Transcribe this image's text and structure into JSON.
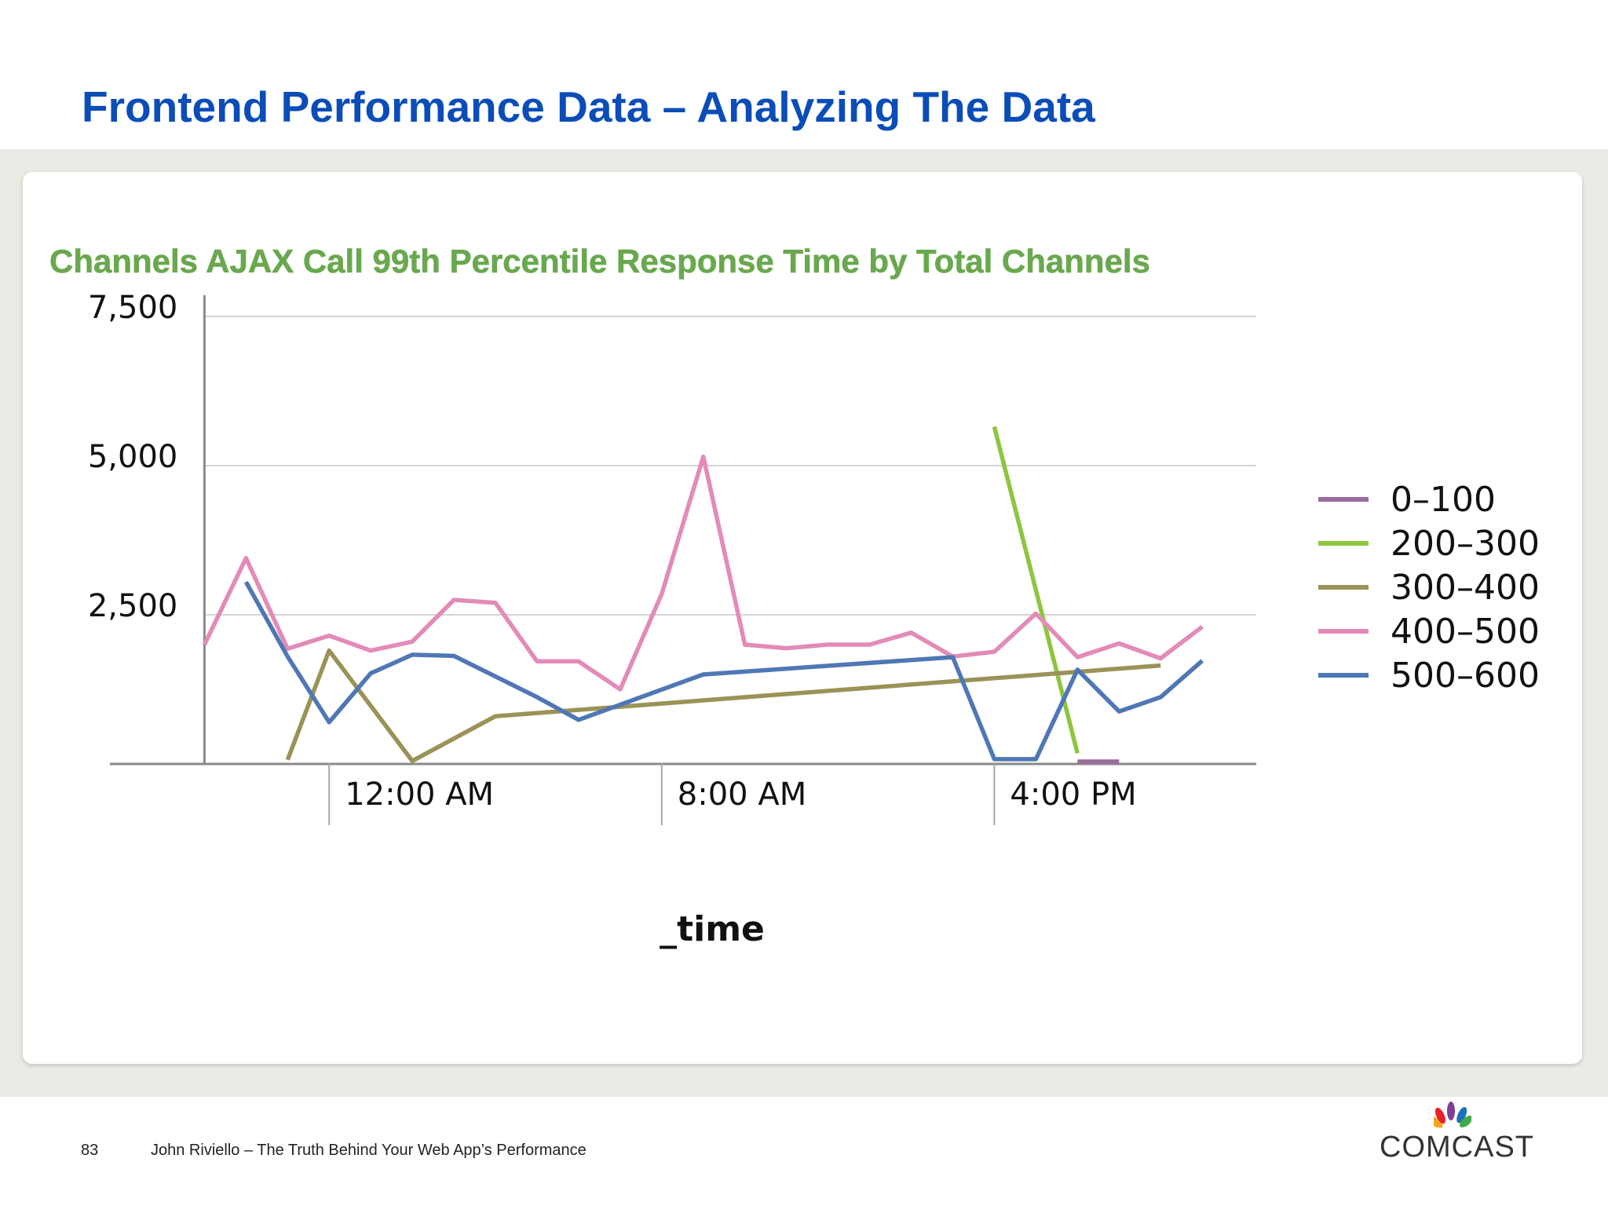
{
  "slide": {
    "title": "Frontend Performance Data – Analyzing The Data",
    "page_number": "83",
    "footer_text": "John Riviello – The Truth Behind Your Web App’s Performance",
    "logo_text": "COMCAST"
  },
  "colors": {
    "title": "#0b4db8",
    "chart_title": "#6aa84f"
  },
  "chart_data": {
    "type": "line",
    "title": "Channels AJAX Call 99th Percentile Response Time by Total Channels",
    "xlabel": "_time",
    "ylabel": "",
    "xlim": [
      -3.8,
      22.3
    ],
    "ylim": [
      0,
      7500
    ],
    "yticks": [
      2500,
      5000,
      7500
    ],
    "ytick_labels": [
      "2,500",
      "5,000",
      "7,500"
    ],
    "xticks": [
      0,
      8,
      16
    ],
    "xtick_labels": [
      "12:00 AM",
      "8:00 AM",
      "4:00 PM"
    ],
    "x_unit": "hours relative to 12:00 AM",
    "grid": true,
    "legend_position": "right",
    "series": [
      {
        "name": "0-100",
        "color": "#9a6b9e",
        "points": [
          [
            18.0,
            40
          ],
          [
            19.0,
            40
          ]
        ]
      },
      {
        "name": "200-300",
        "color": "#8cc63f",
        "points": [
          [
            16.0,
            5650
          ],
          [
            18.0,
            180
          ]
        ]
      },
      {
        "name": "300-400",
        "color": "#9a9257",
        "points": [
          [
            -1.0,
            70
          ],
          [
            0.0,
            1900
          ],
          [
            2.0,
            50
          ],
          [
            4.0,
            800
          ],
          [
            20.0,
            1650
          ]
        ]
      },
      {
        "name": "400-500",
        "color": "#e28bb8",
        "points": [
          [
            -3.0,
            2000
          ],
          [
            -2.0,
            3450
          ],
          [
            -1.0,
            1930
          ],
          [
            0.0,
            2150
          ],
          [
            1.0,
            1900
          ],
          [
            2.0,
            2050
          ],
          [
            3.0,
            2750
          ],
          [
            4.0,
            2700
          ],
          [
            5.0,
            1720
          ],
          [
            6.0,
            1720
          ],
          [
            7.0,
            1250
          ],
          [
            8.0,
            2850
          ],
          [
            9.0,
            5150
          ],
          [
            10.0,
            2000
          ],
          [
            11.0,
            1940
          ],
          [
            12.0,
            2000
          ],
          [
            13.0,
            2000
          ],
          [
            14.0,
            2200
          ],
          [
            15.0,
            1800
          ],
          [
            16.0,
            1880
          ],
          [
            17.0,
            2520
          ],
          [
            18.0,
            1790
          ],
          [
            19.0,
            2020
          ],
          [
            20.0,
            1770
          ],
          [
            21.0,
            2300
          ]
        ]
      },
      {
        "name": "500-600",
        "color": "#4f77b5",
        "points": [
          [
            -2.0,
            3050
          ],
          [
            -1.0,
            1800
          ],
          [
            0.0,
            700
          ],
          [
            1.0,
            1520
          ],
          [
            2.0,
            1830
          ],
          [
            3.0,
            1810
          ],
          [
            5.0,
            1120
          ],
          [
            6.0,
            740
          ],
          [
            9.0,
            1500
          ],
          [
            15.0,
            1790
          ],
          [
            16.0,
            80
          ],
          [
            17.0,
            80
          ],
          [
            18.0,
            1580
          ],
          [
            19.0,
            880
          ],
          [
            20.0,
            1120
          ],
          [
            21.0,
            1730
          ]
        ]
      }
    ]
  }
}
